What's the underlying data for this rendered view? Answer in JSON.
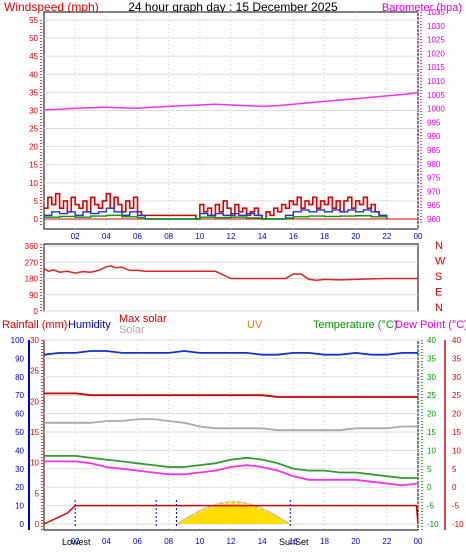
{
  "header": {
    "windspeed_label": "Windspeed (mph)",
    "title": "24 hour graph day : 15 December 2025",
    "barometer_label": "Barometer (hpa)"
  },
  "colors": {
    "wind": "#dd0000",
    "wind_avg": "#2233dd",
    "wind_low": "#009900",
    "baro": "#ee33ee",
    "dir": "#dd2222",
    "humidity": "#1133cc",
    "maxsolar": "#cc0000",
    "solar": "#aaaaaa",
    "temp": "#339933",
    "dew": "#ee33ee",
    "uv": "#cc8800",
    "rain": "#dd0000",
    "sun": "#ffdd00",
    "axis_blue": "#0000cc",
    "axis_green": "#009900",
    "axis_red": "#dd0000",
    "axis_pink": "#dd00dd"
  },
  "legend2": {
    "rainfall": "Rainfall (mm)",
    "humidity": "Humidity",
    "maxsolar": "Max solar",
    "solar": "Solar",
    "uv": "UV",
    "temperature": "Temperature (°C)",
    "dewpoint": "Dew Point (°C)"
  },
  "markers": {
    "lowest": "Lowest",
    "sunset": "SunSet"
  },
  "chart_data": [
    {
      "type": "line",
      "title": "24 hour graph day : 15 December 2025",
      "left_axis": {
        "label": "Windspeed (mph)",
        "range": [
          0,
          55
        ],
        "ticks": [
          "0",
          "5",
          "10",
          "15",
          "20",
          "25",
          "30",
          "35",
          "40",
          "45",
          "50",
          "55"
        ]
      },
      "right_axis": {
        "label": "Barometer (hpa)",
        "range": [
          960,
          1035
        ],
        "ticks": [
          "960",
          "965",
          "970",
          "975",
          "980",
          "985",
          "990",
          "995",
          "1000",
          "1005",
          "1010",
          "1015",
          "1020",
          "1025",
          "1030",
          "1035"
        ]
      },
      "x_ticks": [
        "02",
        "04",
        "06",
        "08",
        "10",
        "12",
        "14",
        "16",
        "18",
        "20",
        "22",
        "00"
      ],
      "x_range": [
        0,
        24
      ],
      "series": [
        {
          "name": "Barometer",
          "axis": "right",
          "x": [
            0,
            1,
            2,
            3,
            4,
            5,
            6,
            7,
            8,
            9,
            10,
            11,
            12,
            13,
            14,
            15,
            16,
            17,
            18,
            19,
            20,
            21,
            22,
            23,
            24
          ],
          "values": [
            999.6,
            999.8,
            1000.1,
            1000.3,
            1000.5,
            1000.3,
            1000.1,
            1000.5,
            1000.8,
            1001.1,
            1001.3,
            1001.6,
            1001.3,
            1001.1,
            1000.8,
            1001.1,
            1001.6,
            1002.1,
            1002.6,
            1003.1,
            1003.6,
            1004.1,
            1004.6,
            1005.1,
            1005.8
          ]
        },
        {
          "x": [
            0,
            0.25,
            0.5,
            0.75,
            1,
            1.25,
            1.5,
            1.75,
            2,
            2.25,
            2.5,
            2.75,
            3,
            3.25,
            3.5,
            3.75,
            4,
            4.25,
            4.5,
            4.75,
            5,
            5.25,
            5.5,
            5.75,
            6,
            6.25,
            9.75,
            10,
            10.25,
            10.5,
            10.75,
            11,
            11.25,
            11.5,
            11.75,
            12,
            12.25,
            12.5,
            12.75,
            13,
            13.25,
            13.5,
            13.75,
            14,
            14.25,
            14.5,
            14.75,
            15,
            15.25,
            15.5,
            15.75,
            16,
            16.25,
            16.5,
            16.75,
            17,
            17.25,
            17.5,
            17.75,
            18,
            18.25,
            18.5,
            18.75,
            19,
            19.25,
            19.5,
            19.75,
            20,
            20.25,
            20.5,
            20.75,
            21,
            21.25,
            21.5
          ],
          "values": [
            3,
            6,
            4,
            7,
            3,
            5,
            2,
            6,
            4,
            3,
            5,
            2,
            6,
            4,
            3,
            5,
            7,
            3,
            6,
            4,
            2,
            5,
            3,
            6,
            2,
            1,
            0,
            4,
            2,
            3,
            1,
            4,
            2,
            5,
            3,
            1,
            4,
            2,
            3,
            1,
            2,
            3,
            1,
            0,
            2,
            1,
            3,
            2,
            4,
            3,
            5,
            4,
            6,
            3,
            5,
            4,
            6,
            3,
            5,
            4,
            6,
            3,
            5,
            2,
            5,
            6,
            3,
            5,
            4,
            6,
            3,
            4,
            2,
            1
          ]
        },
        {
          "x": [
            0,
            0.5,
            1,
            1.5,
            2,
            2.5,
            3,
            3.5,
            4,
            4.5,
            5,
            5.5,
            6,
            6.5,
            9.75,
            10,
            10.5,
            11,
            11.5,
            12,
            12.5,
            13,
            13.5,
            14,
            15.5,
            16,
            16.5,
            17,
            17.5,
            18,
            18.5,
            19,
            19.5,
            20,
            20.5,
            21,
            21.5,
            22
          ],
          "values": [
            1,
            2,
            1.5,
            2,
            1,
            2,
            1.5,
            2,
            3,
            2,
            1,
            2,
            1,
            0,
            0,
            1.5,
            1,
            1.5,
            1,
            1.5,
            1,
            1.5,
            1,
            0,
            1,
            2,
            2.5,
            2,
            2.5,
            2,
            2.5,
            2,
            2.5,
            2,
            2.5,
            2,
            1,
            0
          ]
        },
        {
          "x": [
            0,
            1,
            2,
            3,
            4,
            5,
            6,
            6.5,
            9.75,
            10,
            11,
            12,
            13,
            14,
            15.5,
            16,
            17,
            18,
            19,
            20,
            21,
            22
          ],
          "values": [
            0.5,
            0.7,
            0.5,
            0.8,
            1,
            0.6,
            0.4,
            0,
            0,
            0.5,
            0.4,
            0.5,
            0.3,
            0,
            0.3,
            0.6,
            0.8,
            0.7,
            0.8,
            0.9,
            0.6,
            0
          ]
        }
      ]
    },
    {
      "type": "line",
      "left_axis": {
        "range": [
          0,
          360
        ],
        "ticks": [
          "0",
          "90",
          "180",
          "270",
          "360"
        ]
      },
      "right_axis": {
        "ticks": [
          "N",
          "W",
          "S",
          "E",
          "N"
        ]
      },
      "x_range": [
        0,
        24
      ],
      "series": [
        {
          "x": [
            0,
            0.3,
            0.6,
            1,
            1.5,
            2,
            2.5,
            3,
            3.5,
            4,
            4.3,
            4.6,
            5,
            5.5,
            6,
            6.5,
            7,
            8,
            9,
            10,
            11,
            12,
            13,
            14,
            15,
            15.5,
            16,
            16.5,
            17,
            17.5,
            18,
            19,
            20,
            21,
            22,
            23,
            24
          ],
          "values": [
            235,
            220,
            228,
            215,
            220,
            210,
            218,
            215,
            225,
            245,
            250,
            240,
            243,
            225,
            225,
            220,
            220,
            220,
            220,
            220,
            220,
            180,
            180,
            180,
            180,
            180,
            205,
            205,
            175,
            170,
            175,
            172,
            175,
            178,
            180,
            180,
            180
          ]
        }
      ]
    },
    {
      "type": "line",
      "left_axis": {
        "label": "Rainfall (mm)",
        "range": [
          0,
          100
        ],
        "ticks": [
          "0",
          "10",
          "20",
          "30",
          "40",
          "50",
          "60",
          "70",
          "80",
          "90",
          "100"
        ]
      },
      "humidity_axis": {
        "label": "Humidity",
        "range": [
          0,
          30
        ],
        "ticks": [
          "0",
          "5",
          "10",
          "15",
          "20",
          "25",
          "30"
        ]
      },
      "temp_axis": {
        "label": "Temperature (°C)",
        "range": [
          -10,
          40
        ],
        "ticks": [
          "-10",
          "-5",
          "0",
          "5",
          "10",
          "15",
          "20",
          "25",
          "30",
          "35",
          "40"
        ]
      },
      "dew_axis": {
        "label": "Dew Point (°C)",
        "range": [
          -10,
          40
        ],
        "ticks": [
          "-10",
          "-5",
          "0",
          "5",
          "10",
          "15",
          "20",
          "25",
          "30",
          "35",
          "40"
        ]
      },
      "x_ticks": [
        "02",
        "04",
        "06",
        "08",
        "10",
        "12",
        "14",
        "16",
        "18",
        "20",
        "22",
        "00"
      ],
      "x_range": [
        0,
        24
      ],
      "series": [
        {
          "name": "Humidity",
          "x": [
            0,
            1,
            2,
            3,
            4,
            5,
            6,
            7,
            8,
            9,
            10,
            11,
            12,
            13,
            14,
            15,
            16,
            17,
            18,
            19,
            20,
            21,
            22,
            23,
            24
          ],
          "values": [
            92,
            93,
            93,
            94,
            94,
            93,
            93,
            93,
            93,
            94,
            93,
            93,
            93,
            93,
            92,
            92,
            93,
            93,
            92,
            92,
            93,
            92,
            92,
            93,
            93
          ]
        },
        {
          "name": "Max solar",
          "x": [
            0,
            1,
            2,
            3,
            4,
            5,
            6,
            7,
            8,
            9,
            10,
            11,
            12,
            13,
            14,
            15,
            16,
            17,
            18,
            19,
            20,
            21,
            22,
            23,
            24
          ],
          "values": [
            71,
            71,
            71,
            70,
            70,
            70,
            70,
            70,
            70,
            70,
            70,
            70,
            70,
            70,
            70,
            69,
            69,
            69,
            69,
            69,
            69,
            69,
            69,
            69,
            69
          ]
        },
        {
          "name": "Solar",
          "x": [
            0,
            1,
            2,
            3,
            4,
            5,
            6,
            7,
            8,
            9,
            10,
            11,
            12,
            13,
            14,
            15,
            16,
            17,
            18,
            19,
            20,
            21,
            22,
            23,
            24
          ],
          "values": [
            55,
            55,
            55,
            55,
            56,
            56,
            57,
            57,
            56,
            55,
            53,
            52,
            52,
            52,
            52,
            51,
            51,
            51,
            51,
            51,
            52,
            52,
            52,
            53,
            53
          ]
        },
        {
          "name": "Temperature (°C)",
          "x": [
            0,
            1,
            2,
            3,
            4,
            5,
            6,
            7,
            8,
            9,
            10,
            11,
            12,
            13,
            14,
            15,
            16,
            17,
            18,
            19,
            20,
            21,
            22,
            23,
            24
          ],
          "values": [
            8.5,
            8.5,
            8.5,
            8,
            7.5,
            7,
            6.5,
            6,
            5.5,
            5.5,
            6,
            6.5,
            7.5,
            8,
            7.5,
            6.5,
            5,
            4.5,
            4.5,
            4,
            4,
            3.5,
            3,
            2.5,
            2.5
          ]
        },
        {
          "name": "Dew Point (°C)",
          "x": [
            0,
            1,
            2,
            3,
            4,
            5,
            6,
            7,
            8,
            9,
            10,
            11,
            12,
            13,
            14,
            15,
            16,
            17,
            18,
            19,
            20,
            21,
            22,
            23,
            24
          ],
          "values": [
            7,
            7,
            7,
            6.5,
            5.5,
            5,
            4.5,
            4,
            3.5,
            3.5,
            4,
            4.5,
            5.5,
            6,
            5.5,
            4.5,
            3,
            2,
            2,
            2,
            2,
            1.5,
            1,
            0.5,
            1
          ]
        },
        {
          "name": "Rainfall (mm)",
          "x": [
            0,
            1.5,
            2,
            23.9,
            24
          ],
          "values": [
            0,
            6,
            10,
            10,
            0
          ]
        },
        {
          "name": "UV",
          "x": [
            9,
            10,
            11,
            12,
            13,
            14,
            15
          ],
          "values": [
            0,
            0.5,
            1.5,
            2,
            1.5,
            0.5,
            0
          ]
        }
      ]
    }
  ]
}
